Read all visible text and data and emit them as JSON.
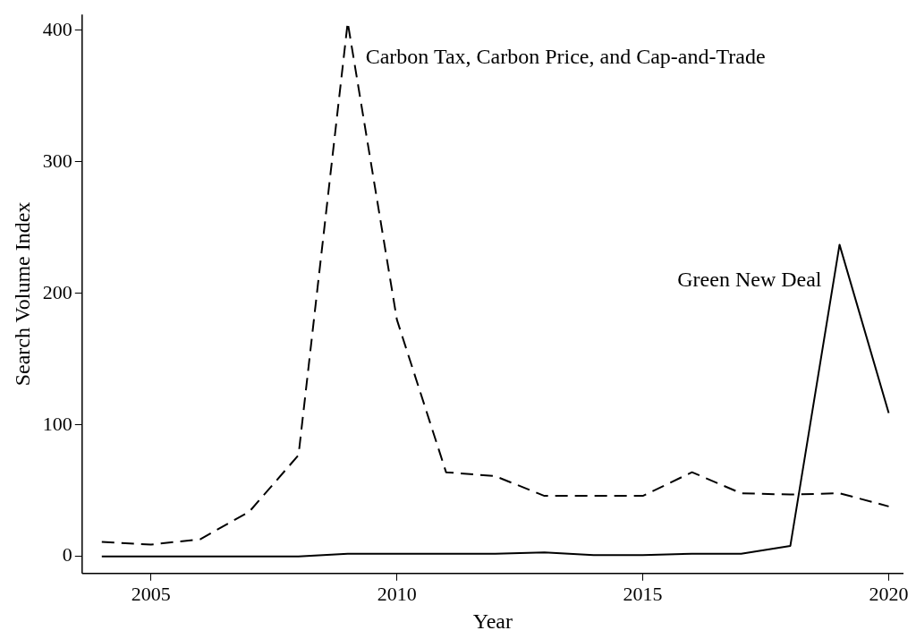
{
  "chart_data": {
    "type": "line",
    "xlabel": "Year",
    "ylabel": "Search Volume Index",
    "x": [
      2004,
      2005,
      2006,
      2007,
      2008,
      2009,
      2010,
      2011,
      2012,
      2013,
      2014,
      2015,
      2016,
      2017,
      2018,
      2019,
      2020
    ],
    "series": [
      {
        "name": "Carbon Tax, Carbon Price, and Cap-and-Trade",
        "color": "#000000",
        "line_style": "dashed",
        "values": [
          11,
          9,
          13,
          34,
          77,
          406,
          180,
          64,
          61,
          46,
          46,
          46,
          64,
          48,
          47,
          48,
          38
        ]
      },
      {
        "name": "Green New Deal",
        "color": "#000000",
        "line_style": "solid",
        "values": [
          0,
          0,
          0,
          0,
          0,
          2,
          2,
          2,
          2,
          3,
          1,
          1,
          2,
          2,
          8,
          237,
          109
        ]
      }
    ],
    "xlim": [
      2003.6,
      2020.3
    ],
    "xticks": [
      2005,
      2010,
      2015,
      2020
    ],
    "ylim": [
      -13,
      412
    ],
    "yticks": [
      0,
      100,
      200,
      300,
      400
    ],
    "grid": false,
    "legend": false,
    "marker": "none"
  }
}
